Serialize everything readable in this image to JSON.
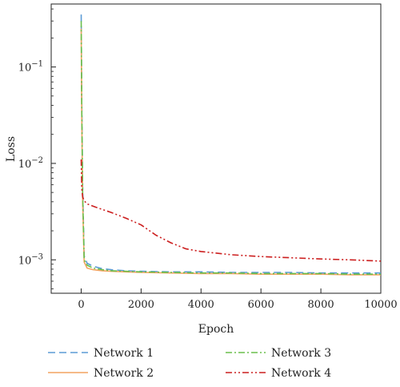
{
  "chart_data": {
    "type": "line",
    "xlabel": "Epoch",
    "ylabel": "Loss",
    "xlim": [
      -1000,
      10000
    ],
    "ylim": [
      0.00045,
      0.45
    ],
    "yscale": "log",
    "x_ticks": [
      {
        "value": 0,
        "label": "0"
      },
      {
        "value": 2000,
        "label": "2000"
      },
      {
        "value": 4000,
        "label": "4000"
      },
      {
        "value": 6000,
        "label": "6000"
      },
      {
        "value": 8000,
        "label": "8000"
      },
      {
        "value": 10000,
        "label": "10000"
      }
    ],
    "y_ticks": [
      {
        "value": 0.001,
        "label": "10−3"
      },
      {
        "value": 0.01,
        "label": "10−2"
      },
      {
        "value": 0.1,
        "label": "10−1"
      }
    ],
    "grid": false,
    "legend_position": "bottom",
    "series": [
      {
        "name": "Network 1",
        "color": "#5b9bd5",
        "dash": "dashed",
        "x": [
          0,
          20,
          50,
          100,
          200,
          400,
          700,
          1000,
          1500,
          2000,
          3000,
          4000,
          5000,
          6000,
          7000,
          8000,
          9000,
          10000
        ],
        "y": [
          0.35,
          0.05,
          0.006,
          0.0011,
          0.00092,
          0.00086,
          0.00081,
          0.00079,
          0.00077,
          0.00076,
          0.00075,
          0.00075,
          0.00074,
          0.00074,
          0.00074,
          0.00073,
          0.00073,
          0.00073
        ]
      },
      {
        "name": "Network 2",
        "color": "#f4a460",
        "dash": "solid",
        "x": [
          0,
          20,
          50,
          100,
          200,
          400,
          700,
          1000,
          1500,
          2000,
          3000,
          4000,
          5000,
          6000,
          7000,
          8000,
          9000,
          10000
        ],
        "y": [
          0.25,
          0.03,
          0.004,
          0.00095,
          0.00082,
          0.00079,
          0.00077,
          0.00076,
          0.00075,
          0.00074,
          0.00073,
          0.00072,
          0.00072,
          0.00071,
          0.00071,
          0.00071,
          0.0007,
          0.0007
        ]
      },
      {
        "name": "Network 3",
        "color": "#6abf4b",
        "dash": "dashdot",
        "x": [
          0,
          20,
          50,
          100,
          200,
          400,
          700,
          1000,
          1500,
          2000,
          3000,
          4000,
          5000,
          6000,
          7000,
          8000,
          9000,
          10000
        ],
        "y": [
          0.3,
          0.04,
          0.005,
          0.001,
          0.00088,
          0.00082,
          0.00079,
          0.00077,
          0.00076,
          0.00075,
          0.00074,
          0.00073,
          0.00073,
          0.00072,
          0.00072,
          0.00072,
          0.00071,
          0.00071
        ]
      },
      {
        "name": "Network 4",
        "color": "#cc1f1f",
        "dash": "dashdotdot",
        "x": [
          0,
          20,
          50,
          100,
          200,
          500,
          1000,
          1500,
          2000,
          2500,
          3000,
          3500,
          4000,
          5000,
          6000,
          7000,
          8000,
          9000,
          10000
        ],
        "y": [
          0.011,
          0.0055,
          0.0045,
          0.0041,
          0.0038,
          0.0035,
          0.0031,
          0.0027,
          0.0023,
          0.0018,
          0.0015,
          0.0013,
          0.00122,
          0.00113,
          0.00108,
          0.00105,
          0.00102,
          0.001,
          0.00097
        ]
      }
    ]
  }
}
